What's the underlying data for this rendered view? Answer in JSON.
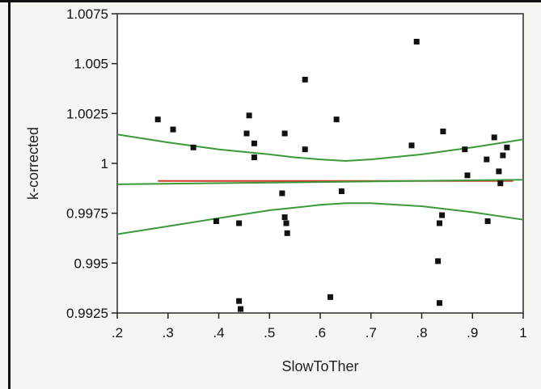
{
  "chart_data": {
    "type": "scatter",
    "title": "",
    "xlabel": "SlowToTher",
    "ylabel": "k-corrected",
    "xlim": [
      0.2,
      1.0
    ],
    "ylim": [
      0.9925,
      1.0075
    ],
    "x_ticks": [
      ".2",
      ".3",
      ".4",
      ".5",
      ".6",
      ".7",
      ".8",
      ".9",
      "1"
    ],
    "x_tick_values": [
      0.2,
      0.3,
      0.4,
      0.5,
      0.6,
      0.7,
      0.8,
      0.9,
      1.0
    ],
    "y_ticks": [
      "1.0075",
      "1.005",
      "1.0025",
      "1",
      "0.9975",
      "0.995",
      "0.9925"
    ],
    "y_tick_values": [
      1.0075,
      1.005,
      1.0025,
      1.0,
      0.9975,
      0.995,
      0.9925
    ],
    "grid": false,
    "points": {
      "x": [
        0.28,
        0.31,
        0.35,
        0.395,
        0.44,
        0.44,
        0.443,
        0.455,
        0.46,
        0.47,
        0.47,
        0.525,
        0.53,
        0.53,
        0.533,
        0.535,
        0.57,
        0.57,
        0.62,
        0.632,
        0.642,
        0.78,
        0.79,
        0.832,
        0.835,
        0.835,
        0.84,
        0.842,
        0.885,
        0.89,
        0.928,
        0.93,
        0.943,
        0.952,
        0.955,
        0.96,
        0.968
      ],
      "y": [
        1.0022,
        1.0017,
        1.0008,
        0.9971,
        0.9931,
        0.997,
        0.9927,
        1.0015,
        1.0024,
        1.001,
        1.0003,
        0.9985,
        1.0015,
        0.9973,
        0.997,
        0.9965,
        1.0007,
        1.0042,
        0.9933,
        1.0022,
        0.9986,
        1.0009,
        1.0061,
        0.9951,
        0.993,
        0.997,
        0.9974,
        1.0016,
        1.0007,
        0.9994,
        1.0002,
        0.9971,
        1.0013,
        0.9996,
        0.999,
        1.0004,
        1.0008
      ]
    },
    "series": [
      {
        "kind": "fit",
        "color": "#d13a2a",
        "x": [
          0.28,
          0.98
        ],
        "y": [
          0.99912,
          0.99912
        ]
      },
      {
        "kind": "mean",
        "color": "#3a9a3a",
        "x": [
          0.2,
          1.0
        ],
        "y": [
          0.99895,
          0.99918
        ]
      },
      {
        "kind": "upper-band",
        "color": "#3a9a3a",
        "x": [
          0.2,
          0.3,
          0.4,
          0.5,
          0.55,
          0.6,
          0.65,
          0.7,
          0.8,
          0.9,
          1.0
        ],
        "y": [
          1.00145,
          1.00105,
          1.0007,
          1.00045,
          1.0003,
          1.0002,
          1.00012,
          1.0002,
          1.00045,
          1.0008,
          1.0012
        ]
      },
      {
        "kind": "lower-band",
        "color": "#3a9a3a",
        "x": [
          0.2,
          0.3,
          0.4,
          0.5,
          0.55,
          0.6,
          0.65,
          0.7,
          0.8,
          0.9,
          1.0
        ],
        "y": [
          0.99645,
          0.99685,
          0.99725,
          0.99765,
          0.99778,
          0.99792,
          0.998,
          0.998,
          0.99785,
          0.99755,
          0.99718
        ]
      }
    ],
    "colors": {
      "points": "#111111",
      "axes": "#222222"
    }
  }
}
